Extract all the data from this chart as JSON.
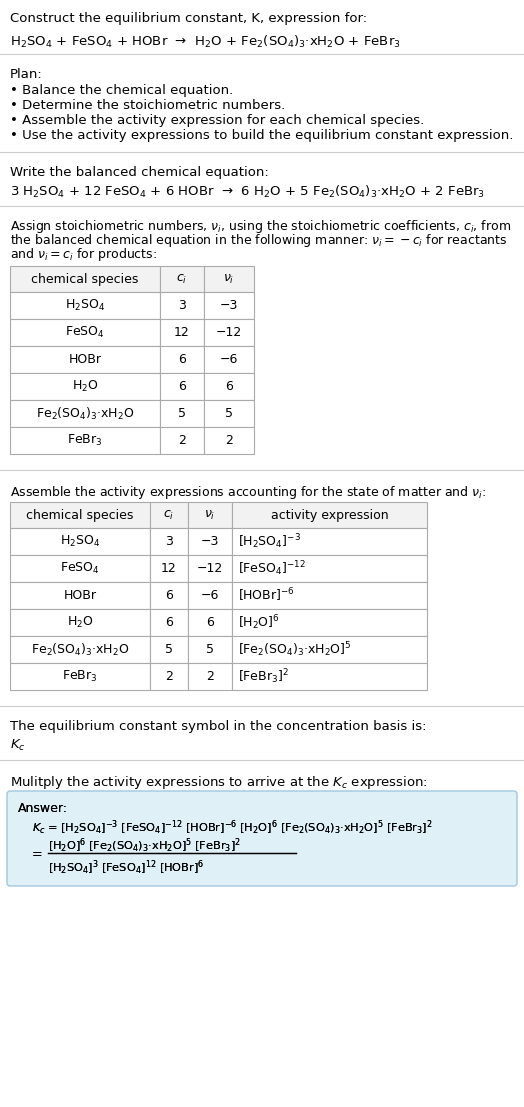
{
  "title_line1": "Construct the equilibrium constant, K, expression for:",
  "title_line2": "H$_2$SO$_4$ + FeSO$_4$ + HOBr  →  H$_2$O + Fe$_2$(SO$_4$)$_3$·xH$_2$O + FeBr$_3$",
  "plan_header": "Plan:",
  "plan_items": [
    "• Balance the chemical equation.",
    "• Determine the stoichiometric numbers.",
    "• Assemble the activity expression for each chemical species.",
    "• Use the activity expressions to build the equilibrium constant expression."
  ],
  "balanced_header": "Write the balanced chemical equation:",
  "balanced_eq": "3 H$_2$SO$_4$ + 12 FeSO$_4$ + 6 HOBr  →  6 H$_2$O + 5 Fe$_2$(SO$_4$)$_3$·xH$_2$O + 2 FeBr$_3$",
  "stoich_intro_lines": [
    "Assign stoichiometric numbers, $\\nu_i$, using the stoichiometric coefficients, $c_i$, from",
    "the balanced chemical equation in the following manner: $\\nu_i = -c_i$ for reactants",
    "and $\\nu_i = c_i$ for products:"
  ],
  "table1_headers": [
    "chemical species",
    "$c_i$",
    "$\\nu_i$"
  ],
  "table1_rows": [
    [
      "H$_2$SO$_4$",
      "3",
      "−3"
    ],
    [
      "FeSO$_4$",
      "12",
      "−12"
    ],
    [
      "HOBr",
      "6",
      "−6"
    ],
    [
      "H$_2$O",
      "6",
      "6"
    ],
    [
      "Fe$_2$(SO$_4$)$_3$·xH$_2$O",
      "5",
      "5"
    ],
    [
      "FeBr$_3$",
      "2",
      "2"
    ]
  ],
  "activity_intro": "Assemble the activity expressions accounting for the state of matter and $\\nu_i$:",
  "table2_headers": [
    "chemical species",
    "$c_i$",
    "$\\nu_i$",
    "activity expression"
  ],
  "table2_rows": [
    [
      "H$_2$SO$_4$",
      "3",
      "−3",
      "[H$_2$SO$_4$]$^{-3}$"
    ],
    [
      "FeSO$_4$",
      "12",
      "−12",
      "[FeSO$_4$]$^{-12}$"
    ],
    [
      "HOBr",
      "6",
      "−6",
      "[HOBr]$^{-6}$"
    ],
    [
      "H$_2$O",
      "6",
      "6",
      "[H$_2$O]$^6$"
    ],
    [
      "Fe$_2$(SO$_4$)$_3$·xH$_2$O",
      "5",
      "5",
      "[Fe$_2$(SO$_4$)$_3$·xH$_2$O]$^5$"
    ],
    [
      "FeBr$_3$",
      "2",
      "2",
      "[FeBr$_3$]$^2$"
    ]
  ],
  "kc_intro": "The equilibrium constant symbol in the concentration basis is:",
  "kc_symbol": "$K_c$",
  "multiply_intro": "Mulitply the activity expressions to arrive at the $K_c$ expression:",
  "answer_label": "Answer:",
  "kc_eq_line1": "$K_c$ = [H$_2$SO$_4$]$^{-3}$ [FeSO$_4$]$^{-12}$ [HOBr]$^{-6}$ [H$_2$O]$^6$ [Fe$_2$(SO$_4$)$_3$·xH$_2$O]$^5$ [FeBr$_3$]$^2$",
  "kc_eq_num": "[H$_2$O]$^6$ [Fe$_2$(SO$_4$)$_3$·xH$_2$O]$^5$ [FeBr$_3$]$^2$",
  "kc_eq_den": "[H$_2$SO$_4$]$^3$ [FeSO$_4$]$^{12}$ [HOBr]$^6$",
  "bg_color": "#ffffff",
  "text_color": "#000000",
  "table_line_color": "#aaaaaa",
  "answer_bg": "#dff0f7",
  "answer_border": "#a0c8e0"
}
